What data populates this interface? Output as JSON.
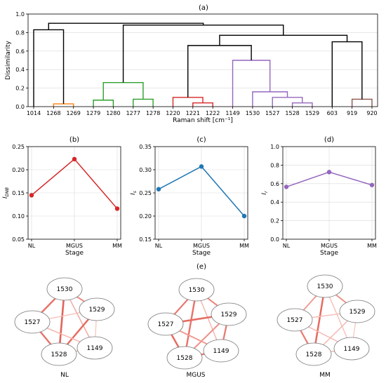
{
  "chart_data": [
    {
      "type": "dendrogram",
      "panel_label": "(a)",
      "xlabel": "Raman shift [cm⁻¹]",
      "ylabel": "Dissimilarity",
      "ylim": [
        0,
        1.0
      ],
      "yticks": [
        "0.0",
        "0.2",
        "0.4",
        "0.6",
        "0.8",
        "1.0"
      ],
      "leaves": [
        "1014",
        "1268",
        "1269",
        "1279",
        "1280",
        "1277",
        "1278",
        "1220",
        "1221",
        "1222",
        "1149",
        "1530",
        "1527",
        "1528",
        "1529",
        "603",
        "919",
        "920"
      ],
      "links": [
        {
          "a": 1,
          "b": 2,
          "h": 0.03,
          "color": "#ff7f0e"
        },
        {
          "a": 0,
          "b": 1.5,
          "h": 0.83,
          "color": "#000000"
        },
        {
          "a": 3,
          "b": 4,
          "h": 0.07,
          "color": "#2ca02c"
        },
        {
          "a": 5,
          "b": 6,
          "h": 0.08,
          "color": "#2ca02c"
        },
        {
          "a": 3.5,
          "b": 5.5,
          "h": 0.26,
          "color": "#2ca02c"
        },
        {
          "a": 8,
          "b": 9,
          "h": 0.04,
          "color": "#d62728"
        },
        {
          "a": 7,
          "b": 8.5,
          "h": 0.1,
          "color": "#d62728"
        },
        {
          "a": 13,
          "b": 14,
          "h": 0.04,
          "color": "#9467bd"
        },
        {
          "a": 12,
          "b": 13.5,
          "h": 0.1,
          "color": "#9467bd"
        },
        {
          "a": 11,
          "b": 12.75,
          "h": 0.16,
          "color": "#9467bd"
        },
        {
          "a": 10,
          "b": 11.875,
          "h": 0.5,
          "color": "#9467bd"
        },
        {
          "a": 7.75,
          "b": 10.9375,
          "h": 0.66,
          "color": "#000000"
        },
        {
          "a": 16,
          "b": 17,
          "h": 0.08,
          "color": "#8c564b"
        },
        {
          "a": 15,
          "b": 16.5,
          "h": 0.7,
          "color": "#000000"
        },
        {
          "a": 9.34375,
          "b": 15.75,
          "h": 0.77,
          "color": "#000000"
        },
        {
          "a": 4.5,
          "b": 12.546875,
          "h": 0.88,
          "color": "#000000"
        },
        {
          "a": 0.75,
          "b": 8.5234375,
          "h": 0.9,
          "color": "#000000"
        }
      ]
    },
    {
      "type": "line",
      "panel_label": "(b)",
      "categories": [
        "NL",
        "MGUS",
        "MM"
      ],
      "values": [
        0.145,
        0.223,
        0.116
      ],
      "color": "#d62728",
      "xlabel": "Stage",
      "ylabel": "I_DNB",
      "ylim": [
        0.05,
        0.25
      ],
      "yticks": [
        "0.05",
        "0.10",
        "0.15",
        "0.20",
        "0.25"
      ]
    },
    {
      "type": "line",
      "panel_label": "(c)",
      "categories": [
        "NL",
        "MGUS",
        "MM"
      ],
      "values": [
        0.258,
        0.307,
        0.2
      ],
      "color": "#1f77b4",
      "xlabel": "Stage",
      "ylabel": "I_s",
      "ylim": [
        0.15,
        0.35
      ],
      "yticks": [
        "0.15",
        "0.20",
        "0.25",
        "0.30",
        "0.35"
      ]
    },
    {
      "type": "line",
      "panel_label": "(d)",
      "categories": [
        "NL",
        "MGUS",
        "MM"
      ],
      "values": [
        0.565,
        0.725,
        0.585
      ],
      "color": "#9467bd",
      "xlabel": "Stage",
      "ylabel": "I_r",
      "ylim": [
        0.0,
        1.0
      ],
      "yticks": [
        "0.0",
        "0.2",
        "0.4",
        "0.6",
        "0.8",
        "1.0"
      ]
    },
    {
      "type": "network",
      "panel_label": "(e)",
      "nodes": [
        "1530",
        "1529",
        "1527",
        "1528",
        "1149"
      ],
      "graphs": [
        {
          "label": "NL",
          "edges": [
            {
              "a": "1530",
              "b": "1529",
              "w": 0.65
            },
            {
              "a": "1530",
              "b": "1527",
              "w": 0.8
            },
            {
              "a": "1530",
              "b": "1528",
              "w": 0.9
            },
            {
              "a": "1530",
              "b": "1149",
              "w": 0.4
            },
            {
              "a": "1529",
              "b": "1527",
              "w": 0.3
            },
            {
              "a": "1529",
              "b": "1528",
              "w": 0.85
            },
            {
              "a": "1529",
              "b": "1149",
              "w": 0.25
            },
            {
              "a": "1527",
              "b": "1528",
              "w": 0.8
            },
            {
              "a": "1527",
              "b": "1149",
              "w": 0.35
            },
            {
              "a": "1528",
              "b": "1149",
              "w": 0.35
            }
          ]
        },
        {
          "label": "MGUS",
          "edges": [
            {
              "a": "1530",
              "b": "1529",
              "w": 0.65
            },
            {
              "a": "1530",
              "b": "1527",
              "w": 0.75
            },
            {
              "a": "1530",
              "b": "1528",
              "w": 0.8
            },
            {
              "a": "1530",
              "b": "1149",
              "w": 0.35
            },
            {
              "a": "1529",
              "b": "1527",
              "w": 0.85
            },
            {
              "a": "1529",
              "b": "1528",
              "w": 0.6
            },
            {
              "a": "1529",
              "b": "1149",
              "w": 0.75
            },
            {
              "a": "1527",
              "b": "1528",
              "w": 0.85
            },
            {
              "a": "1527",
              "b": "1149",
              "w": 0.55
            },
            {
              "a": "1528",
              "b": "1149",
              "w": 0.8
            }
          ]
        },
        {
          "label": "MM",
          "edges": [
            {
              "a": "1530",
              "b": "1529",
              "w": 0.6
            },
            {
              "a": "1530",
              "b": "1527",
              "w": 0.55
            },
            {
              "a": "1530",
              "b": "1528",
              "w": 0.85
            },
            {
              "a": "1530",
              "b": "1149",
              "w": 0.3
            },
            {
              "a": "1529",
              "b": "1527",
              "w": 0.3
            },
            {
              "a": "1529",
              "b": "1528",
              "w": 0.35
            },
            {
              "a": "1529",
              "b": "1149",
              "w": 0.25
            },
            {
              "a": "1527",
              "b": "1528",
              "w": 0.75
            },
            {
              "a": "1527",
              "b": "1149",
              "w": 0.35
            },
            {
              "a": "1528",
              "b": "1149",
              "w": 0.35
            }
          ]
        }
      ]
    }
  ]
}
